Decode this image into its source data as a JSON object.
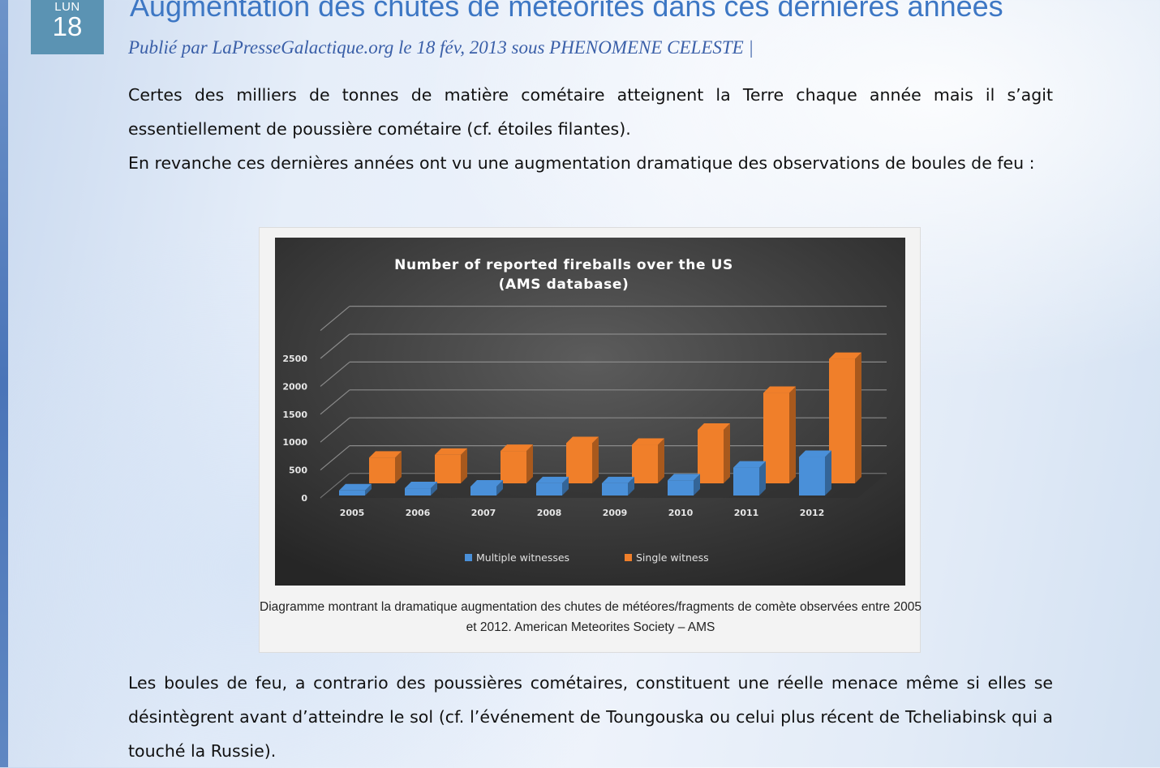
{
  "date_badge": {
    "weekday": "LUN",
    "day": "18"
  },
  "post": {
    "title": "Augmentation des chutes de météorites dans ces dernières années",
    "meta": "Publié par LaPresseGalactique.org le 18 fév, 2013 sous PHENOMENE CELESTE |",
    "paragraphs": [
      "Certes des milliers de tonnes de matière cométaire atteignent la Terre chaque année mais il s’agit essentiellement de poussière cométaire (cf. étoiles filantes).",
      "En revanche ces dernières années ont vu une augmentation dramatique des observations de boules de feu :",
      "Les boules de feu, a contrario des poussières cométaires, constituent une réelle menace même si elles se désintègrent avant d’atteindre le sol (cf. l’événement de Toungouska ou celui plus récent de Tcheliabinsk qui a touché la Russie)."
    ],
    "caption": "Diagramme montrant la dramatique augmentation des chutes de météores/fragments de comète observées entre 2005 et 2012. American Meteorites Society – AMS"
  },
  "chart_data": {
    "type": "bar",
    "title_lines": [
      "Number of reported fireballs over the US",
      "(AMS database)"
    ],
    "categories": [
      "2005",
      "2006",
      "2007",
      "2008",
      "2009",
      "2010",
      "2011",
      "2012"
    ],
    "series": [
      {
        "name": "Multiple witnesses",
        "color": "#4a90d9",
        "values": [
          90,
          130,
          160,
          220,
          220,
          270,
          500,
          690
        ]
      },
      {
        "name": "Single witness",
        "color": "#f07f2a",
        "values": [
          460,
          510,
          580,
          720,
          690,
          960,
          1620,
          2230
        ]
      }
    ],
    "ylim": [
      0,
      2500
    ],
    "yticks": [
      "0",
      "500",
      "1000",
      "1500",
      "2000",
      "2500"
    ],
    "grid": true,
    "legend": "bottom",
    "background": "#3a3a3a"
  }
}
